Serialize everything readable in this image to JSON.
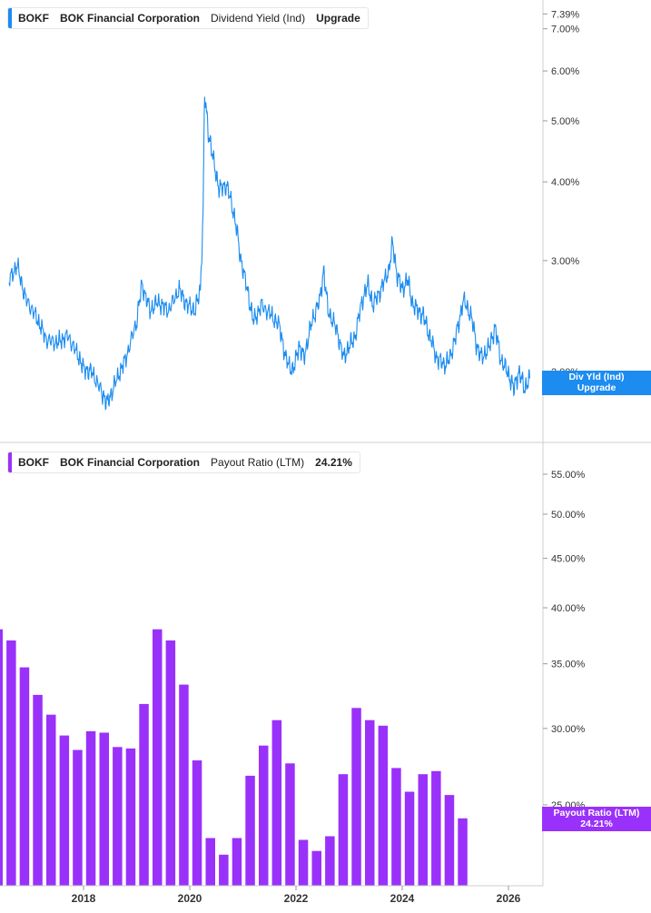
{
  "top_legend": {
    "ticker": "BOKF",
    "company": "BOK Financial Corporation",
    "metric": "Dividend Yield (Ind)",
    "value": "Upgrade"
  },
  "bottom_legend": {
    "ticker": "BOKF",
    "company": "BOK Financial Corporation",
    "metric": "Payout Ratio (LTM)",
    "value": "24.21%"
  },
  "top_badge": {
    "line1": "Div Yld (Ind)",
    "line2": "Upgrade"
  },
  "bottom_badge": {
    "line1": "Payout Ratio (LTM)",
    "line2": "24.21%"
  },
  "colors": {
    "yield_line": "#1c8cf0",
    "payout_bar": "#9a31fa"
  },
  "chart_data": [
    {
      "type": "line",
      "scale": "log",
      "y_ticks": [
        "7.39%",
        "7.00%",
        "6.00%",
        "5.00%",
        "4.00%",
        "3.00%",
        "2.00%"
      ],
      "series": [
        {
          "values": [
            [
              2016.6,
              2.8
            ],
            [
              2016.75,
              2.95
            ],
            [
              2016.9,
              2.62
            ],
            [
              2017.1,
              2.45
            ],
            [
              2017.3,
              2.25
            ],
            [
              2017.5,
              2.22
            ],
            [
              2017.7,
              2.28
            ],
            [
              2017.9,
              2.12
            ],
            [
              2018.0,
              2.02
            ],
            [
              2018.15,
              2.0
            ],
            [
              2018.35,
              1.85
            ],
            [
              2018.45,
              1.78
            ],
            [
              2018.6,
              1.92
            ],
            [
              2018.8,
              2.1
            ],
            [
              2019.0,
              2.4
            ],
            [
              2019.1,
              2.75
            ],
            [
              2019.25,
              2.5
            ],
            [
              2019.4,
              2.58
            ],
            [
              2019.6,
              2.5
            ],
            [
              2019.8,
              2.7
            ],
            [
              2019.95,
              2.55
            ],
            [
              2020.1,
              2.5
            ],
            [
              2020.2,
              2.7
            ],
            [
              2020.25,
              3.5
            ],
            [
              2020.28,
              5.5
            ],
            [
              2020.35,
              4.8
            ],
            [
              2020.45,
              4.3
            ],
            [
              2020.55,
              3.9
            ],
            [
              2020.7,
              3.95
            ],
            [
              2020.85,
              3.5
            ],
            [
              2020.95,
              3.05
            ],
            [
              2021.1,
              2.65
            ],
            [
              2021.2,
              2.4
            ],
            [
              2021.35,
              2.55
            ],
            [
              2021.55,
              2.45
            ],
            [
              2021.7,
              2.35
            ],
            [
              2021.8,
              2.1
            ],
            [
              2021.95,
              2.0
            ],
            [
              2022.05,
              2.2
            ],
            [
              2022.15,
              2.1
            ],
            [
              2022.3,
              2.4
            ],
            [
              2022.45,
              2.6
            ],
            [
              2022.52,
              2.9
            ],
            [
              2022.6,
              2.5
            ],
            [
              2022.75,
              2.35
            ],
            [
              2022.9,
              2.1
            ],
            [
              2023.0,
              2.2
            ],
            [
              2023.1,
              2.25
            ],
            [
              2023.25,
              2.6
            ],
            [
              2023.35,
              2.75
            ],
            [
              2023.45,
              2.55
            ],
            [
              2023.6,
              2.7
            ],
            [
              2023.75,
              2.9
            ],
            [
              2023.82,
              3.2
            ],
            [
              2023.9,
              2.85
            ],
            [
              2024.0,
              2.7
            ],
            [
              2024.1,
              2.8
            ],
            [
              2024.2,
              2.55
            ],
            [
              2024.3,
              2.5
            ],
            [
              2024.4,
              2.45
            ],
            [
              2024.5,
              2.3
            ],
            [
              2024.65,
              2.1
            ],
            [
              2024.8,
              2.05
            ],
            [
              2024.9,
              2.1
            ],
            [
              2025.05,
              2.35
            ],
            [
              2025.15,
              2.6
            ],
            [
              2025.3,
              2.45
            ],
            [
              2025.4,
              2.2
            ],
            [
              2025.5,
              2.1
            ],
            [
              2025.65,
              2.2
            ],
            [
              2025.75,
              2.35
            ],
            [
              2025.85,
              2.1
            ],
            [
              2026.0,
              1.98
            ],
            [
              2026.1,
              1.88
            ],
            [
              2026.2,
              2.0
            ],
            [
              2026.3,
              1.88
            ],
            [
              2026.4,
              1.95
            ]
          ]
        }
      ]
    },
    {
      "type": "bar",
      "scale": "log",
      "y_ticks": [
        "55.00%",
        "50.00%",
        "45.00%",
        "40.00%",
        "35.00%",
        "30.00%",
        "25.00%"
      ],
      "x_ticks": [
        "2018",
        "2020",
        "2022",
        "2024",
        "2026"
      ],
      "series": [
        {
          "name": "Payout Ratio (LTM)",
          "values": [
            [
              2016.7,
              47.3
            ],
            [
              2016.95,
              47.0
            ],
            [
              2017.2,
              48.8
            ],
            [
              2017.45,
              41.0
            ],
            [
              2017.7,
              38.0
            ],
            [
              2017.95,
              37.0
            ],
            [
              2018.2,
              34.7
            ],
            [
              2018.45,
              32.5
            ],
            [
              2018.7,
              31.0
            ],
            [
              2018.95,
              29.5
            ],
            [
              2019.2,
              28.5
            ],
            [
              2019.45,
              29.8
            ],
            [
              2019.7,
              29.7
            ],
            [
              2019.95,
              28.7
            ],
            [
              2020.2,
              28.6
            ],
            [
              2020.45,
              31.8
            ],
            [
              2020.7,
              38.0
            ],
            [
              2020.95,
              37.0
            ],
            [
              2021.2,
              33.3
            ],
            [
              2021.45,
              27.8
            ],
            [
              2021.7,
              23.1
            ],
            [
              2021.95,
              22.2
            ],
            [
              2022.2,
              23.1
            ],
            [
              2022.45,
              26.8
            ],
            [
              2022.7,
              28.8
            ],
            [
              2022.95,
              30.6
            ],
            [
              2023.2,
              27.6
            ],
            [
              2023.45,
              23.0
            ],
            [
              2023.7,
              22.4
            ],
            [
              2023.95,
              23.2
            ],
            [
              2024.2,
              26.9
            ],
            [
              2024.45,
              31.5
            ],
            [
              2024.7,
              30.6
            ],
            [
              2024.95,
              30.2
            ],
            [
              2025.2,
              27.3
            ],
            [
              2025.45,
              25.8
            ],
            [
              2025.7,
              26.9
            ],
            [
              2025.95,
              27.1
            ],
            [
              2026.2,
              25.6
            ],
            [
              2026.45,
              24.21
            ]
          ]
        }
      ]
    }
  ]
}
